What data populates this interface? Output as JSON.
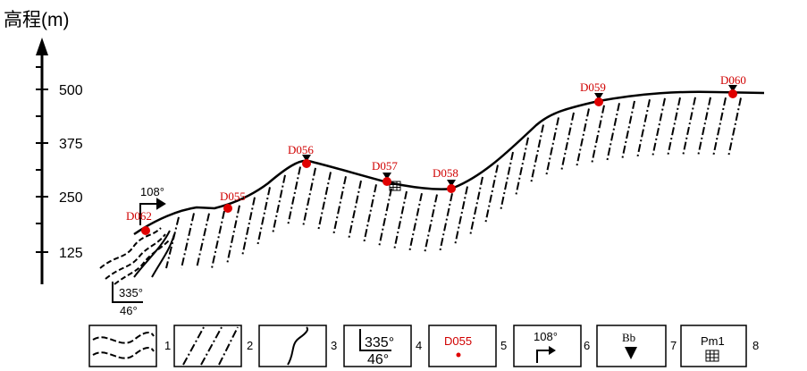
{
  "axis": {
    "label": "高程(m)",
    "ticks": [
      "125",
      "250",
      "375",
      "500"
    ]
  },
  "profile": {
    "points": [
      "D062",
      "D055",
      "D056",
      "D057",
      "D058",
      "D059",
      "D060"
    ],
    "strike_label": "108°",
    "dip_labels": [
      "335°",
      "46°"
    ]
  },
  "legend": {
    "items": [
      {
        "number": "1"
      },
      {
        "number": "2"
      },
      {
        "number": "3"
      },
      {
        "number": "4",
        "texts": [
          "335°",
          "46°"
        ]
      },
      {
        "number": "5",
        "text": "D055"
      },
      {
        "number": "6",
        "text": "108°"
      },
      {
        "number": "7",
        "text": "Bb"
      },
      {
        "number": "8",
        "text": "Pm1"
      }
    ]
  }
}
